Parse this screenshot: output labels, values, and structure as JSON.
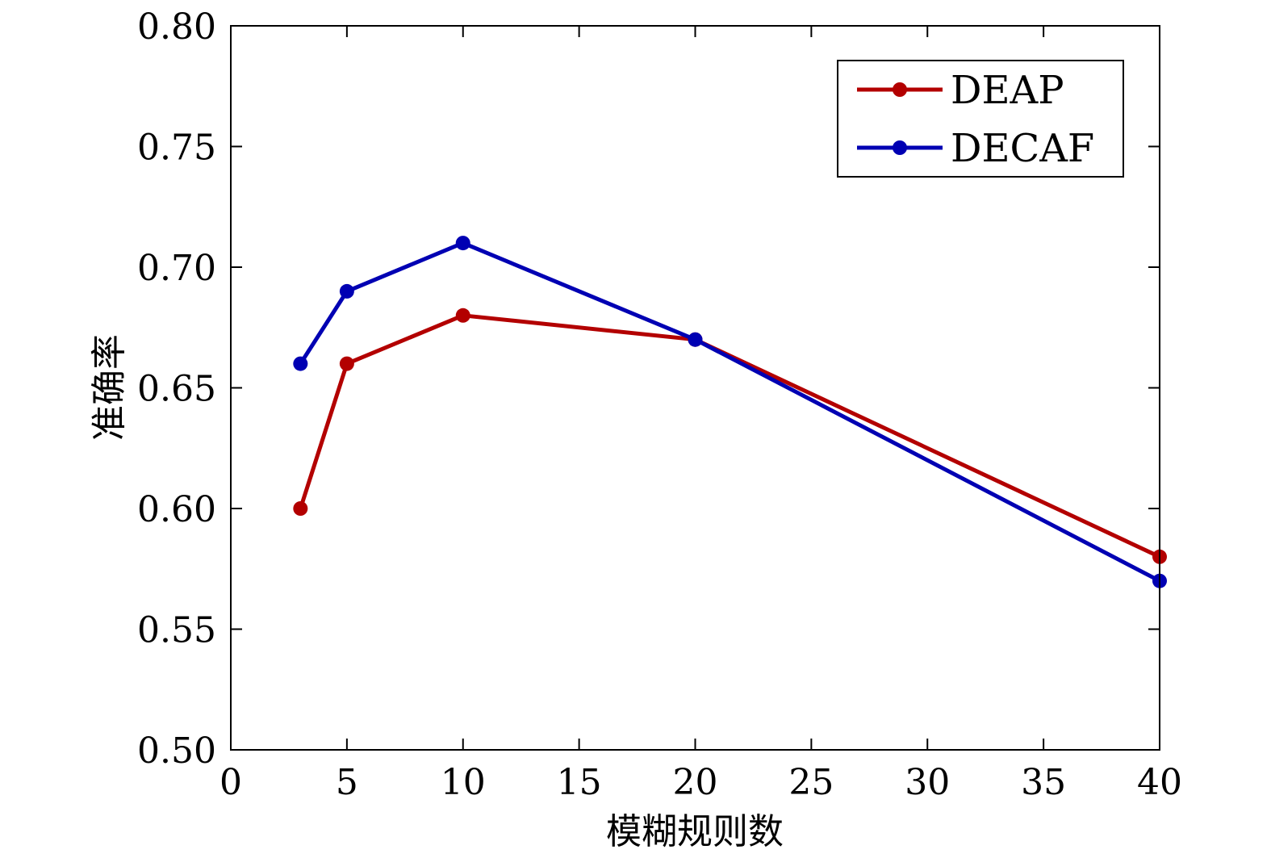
{
  "chart_data": {
    "type": "line",
    "xlabel": "模糊规则数",
    "ylabel": "准确率",
    "xlim": [
      0,
      40
    ],
    "ylim": [
      0.5,
      0.8
    ],
    "xticks": [
      "0",
      "5",
      "10",
      "15",
      "20",
      "25",
      "30",
      "35",
      "40"
    ],
    "yticks": [
      "0.50",
      "0.55",
      "0.60",
      "0.65",
      "0.70",
      "0.75",
      "0.80"
    ],
    "legend_position": "top-right",
    "grid": false,
    "series": [
      {
        "name": "DEAP",
        "color": "#b30000",
        "x": [
          3,
          5,
          10,
          20,
          40
        ],
        "y": [
          0.6,
          0.66,
          0.68,
          0.67,
          0.58
        ]
      },
      {
        "name": "DECAF",
        "color": "#0000b3",
        "x": [
          3,
          5,
          10,
          20,
          40
        ],
        "y": [
          0.66,
          0.69,
          0.71,
          0.67,
          0.57
        ]
      }
    ]
  }
}
